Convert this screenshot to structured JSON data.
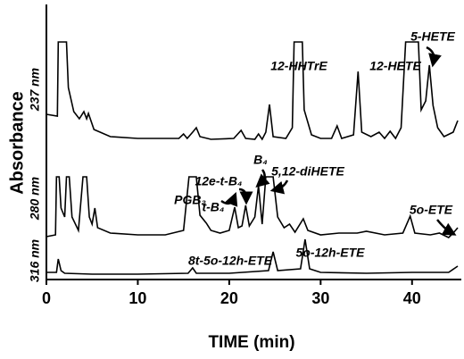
{
  "chart_data": {
    "type": "line",
    "x_label": "TIME (min)",
    "y_label": "Absorbance",
    "xlim": [
      0,
      45
    ],
    "xticks": [
      0,
      10,
      20,
      30,
      40
    ],
    "ylim": [
      0,
      308
    ],
    "series": [
      {
        "name": "237 nm",
        "color": "#000000",
        "x": [
          0,
          1.2,
          1.3,
          2.2,
          2.4,
          3.0,
          3.6,
          4.1,
          4.4,
          4.6,
          5.2,
          7,
          10,
          14.5,
          15,
          15.4,
          16,
          16.4,
          16.8,
          18,
          20.5,
          21.3,
          21.8,
          22.8,
          23.2,
          23.6,
          24,
          24.4,
          24.8,
          26.2,
          26.9,
          27.1,
          28.0,
          28.2,
          29,
          30,
          31.2,
          31.8,
          32.3,
          33.6,
          34.1,
          34.5,
          35.5,
          36.4,
          37,
          37.6,
          38.2,
          38.8,
          39.3,
          40.7,
          41,
          41.5,
          41.9,
          42.3,
          42.8,
          43.5,
          44.5,
          45
        ],
        "values": [
          185,
          183,
          266,
          266,
          215,
          188,
          180,
          188,
          180,
          186,
          168,
          160,
          158,
          158,
          163,
          158,
          165,
          170,
          160,
          157,
          158,
          167,
          158,
          157,
          163,
          157,
          165,
          196,
          160,
          158,
          170,
          266,
          266,
          190,
          162,
          158,
          158,
          172,
          158,
          162,
          233,
          165,
          160,
          165,
          158,
          166,
          158,
          170,
          266,
          266,
          190,
          200,
          240,
          195,
          170,
          160,
          165,
          178
        ]
      },
      {
        "name": "280 nm",
        "color": "#000000",
        "x": [
          0,
          1.0,
          1.1,
          1.4,
          1.6,
          2.0,
          2.2,
          2.5,
          2.8,
          3.5,
          4.0,
          4.4,
          4.7,
          5.0,
          5.3,
          5.6,
          7,
          10,
          13,
          15,
          15.6,
          16.4,
          16.8,
          17.5,
          18,
          19,
          20,
          20.6,
          21.0,
          21.4,
          21.8,
          22.2,
          22.8,
          23.2,
          23.6,
          24,
          24.8,
          25.3,
          26,
          26.6,
          27.2,
          28.1,
          28.6,
          30,
          32,
          34,
          35,
          37,
          39,
          39.8,
          40.3,
          42,
          43,
          44,
          44.5,
          45
        ],
        "values": [
          48,
          50,
          115,
          115,
          80,
          70,
          115,
          115,
          70,
          55,
          115,
          115,
          70,
          62,
          80,
          58,
          52,
          50,
          50,
          55,
          115,
          115,
          72,
          63,
          55,
          52,
          55,
          81,
          58,
          60,
          83,
          60,
          70,
          105,
          62,
          115,
          115,
          70,
          58,
          62,
          53,
          68,
          55,
          50,
          52,
          52,
          54,
          50,
          52,
          71,
          52,
          50,
          52,
          47,
          52,
          58
        ]
      },
      {
        "name": "316 nm",
        "color": "#000000",
        "x": [
          0,
          1.1,
          1.3,
          1.6,
          2,
          5,
          10,
          15.5,
          16,
          16.4,
          20,
          24.3,
          24.8,
          25.3,
          27.8,
          28.3,
          28.8,
          30,
          35,
          40,
          44,
          45
        ],
        "values": [
          8,
          8,
          23,
          10,
          7,
          6,
          6,
          7,
          13,
          7,
          7,
          10,
          31,
          10,
          12,
          45,
          12,
          8,
          7,
          8,
          8,
          15
        ]
      }
    ],
    "annotations": [
      {
        "text": "12-HHTrE"
      },
      {
        "text": "12-HETE"
      },
      {
        "text": "5-HETE"
      },
      {
        "text": "PGB₂"
      },
      {
        "text": "t-B₄"
      },
      {
        "text": "12e-t-B₄"
      },
      {
        "text": "B₄"
      },
      {
        "text": "5,12-diHETE"
      },
      {
        "text": "5o-ETE"
      },
      {
        "text": "8t-5o-12h-ETE"
      },
      {
        "text": "5o-12h-ETE"
      }
    ]
  }
}
